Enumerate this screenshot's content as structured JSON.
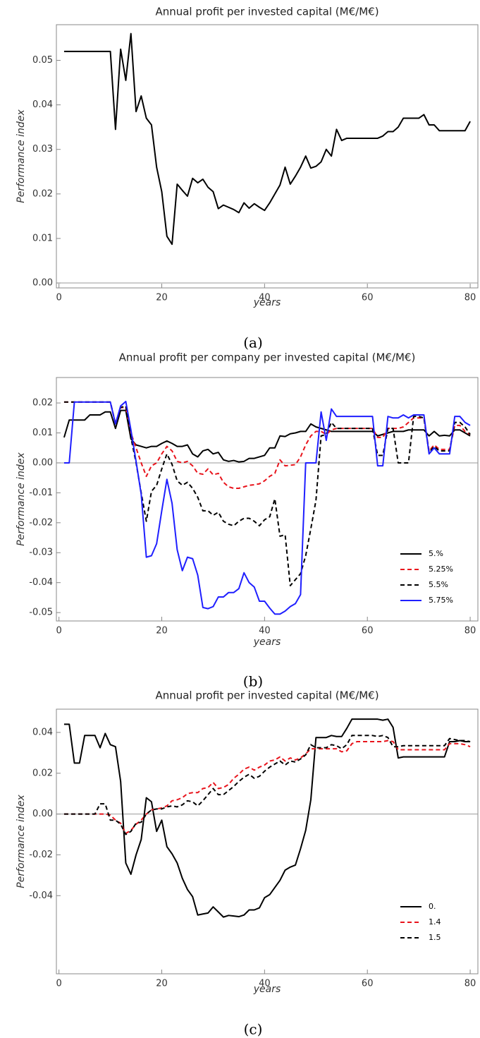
{
  "chart_data": [
    {
      "type": "line",
      "title": "Annual profit per invested capital (M€/M€)",
      "ylabel": "Performance index",
      "xlabel": "years",
      "panel_label": "(a)",
      "x": [
        1,
        2,
        3,
        4,
        5,
        6,
        7,
        8,
        9,
        10,
        11,
        12,
        13,
        14,
        15,
        16,
        17,
        18,
        19,
        20,
        21,
        22,
        23,
        24,
        25,
        26,
        27,
        28,
        29,
        30,
        31,
        32,
        33,
        34,
        35,
        36,
        37,
        38,
        39,
        40,
        41,
        42,
        43,
        44,
        45,
        46,
        47,
        48,
        49,
        50,
        51,
        52,
        53,
        54,
        55,
        56,
        57,
        58,
        59,
        60,
        61,
        62,
        63,
        64,
        65,
        66,
        67,
        68,
        69,
        70,
        71,
        72,
        73,
        74,
        75,
        76,
        77,
        78,
        79,
        80
      ],
      "xlim": [
        -0.5,
        81.5
      ],
      "xticks": [
        0,
        20,
        40,
        60,
        80
      ],
      "ylim": [
        -0.0011,
        0.058
      ],
      "yticks": [
        {
          "value": 0,
          "label": "0.00"
        },
        0.01,
        0.02,
        0.03,
        0.04,
        0.05
      ],
      "series": [
        {
          "name": null,
          "color": "#000000",
          "style": "solid",
          "values": [
            0.052,
            0.052,
            0.052,
            0.052,
            0.052,
            0.052,
            0.052,
            0.052,
            0.052,
            0.052,
            0.0345,
            0.0525,
            0.0455,
            0.056,
            0.0385,
            0.042,
            0.037,
            0.0355,
            0.026,
            0.0205,
            0.0105,
            0.0087,
            0.0222,
            0.0208,
            0.0195,
            0.0235,
            0.0225,
            0.0233,
            0.0215,
            0.0205,
            0.0167,
            0.0175,
            0.017,
            0.0165,
            0.0158,
            0.018,
            0.0168,
            0.0178,
            0.017,
            0.0163,
            0.018,
            0.02,
            0.022,
            0.026,
            0.0222,
            0.024,
            0.026,
            0.0285,
            0.0258,
            0.0262,
            0.0272,
            0.03,
            0.0285,
            0.0345,
            0.032,
            0.0325,
            0.0325,
            0.0325,
            0.0325,
            0.0325,
            0.0325,
            0.0325,
            0.033,
            0.034,
            0.034,
            0.035,
            0.037,
            0.037,
            0.037,
            0.037,
            0.0378,
            0.0355,
            0.0355,
            0.0342,
            0.0342,
            0.0342,
            0.0342,
            0.0342,
            0.0342,
            0.0363
          ]
        }
      ]
    },
    {
      "type": "line",
      "title": "Annual profit per company per invested capital (M€/M€)",
      "ylabel": "Performance index",
      "xlabel": "years",
      "panel_label": "(b)",
      "legend_position": "lower right",
      "x": [
        1,
        2,
        3,
        4,
        5,
        6,
        7,
        8,
        9,
        10,
        11,
        12,
        13,
        14,
        15,
        16,
        17,
        18,
        19,
        20,
        21,
        22,
        23,
        24,
        25,
        26,
        27,
        28,
        29,
        30,
        31,
        32,
        33,
        34,
        35,
        36,
        37,
        38,
        39,
        40,
        41,
        42,
        43,
        44,
        45,
        46,
        47,
        48,
        49,
        50,
        51,
        52,
        53,
        54,
        55,
        56,
        57,
        58,
        59,
        60,
        61,
        62,
        63,
        64,
        65,
        66,
        67,
        68,
        69,
        70,
        71,
        72,
        73,
        74,
        75,
        76,
        77,
        78,
        79,
        80
      ],
      "xlim": [
        -0.5,
        81.5
      ],
      "xticks": [
        0,
        20,
        40,
        60,
        80
      ],
      "ylim": [
        -0.0528,
        0.0285
      ],
      "yticks": [
        -0.05,
        -0.04,
        -0.03,
        -0.02,
        -0.01,
        {
          "value": 0,
          "label": "0.00"
        },
        0.01,
        0.02
      ],
      "series": [
        {
          "name": "5.%",
          "color": "#000000",
          "style": "solid",
          "values": [
            0.0085,
            0.0143,
            0.0143,
            0.0143,
            0.0143,
            0.016,
            0.016,
            0.016,
            0.017,
            0.017,
            0.0115,
            0.0175,
            0.0175,
            0.008,
            0.006,
            0.0055,
            0.005,
            0.0055,
            0.0055,
            0.0065,
            0.0073,
            0.0065,
            0.0055,
            0.0055,
            0.006,
            0.003,
            0.002,
            0.004,
            0.0045,
            0.003,
            0.0035,
            0.001,
            0.0005,
            0.0008,
            0.0003,
            0.0005,
            0.0015,
            0.0015,
            0.002,
            0.0025,
            0.005,
            0.005,
            0.009,
            0.0088,
            0.0097,
            0.01,
            0.0105,
            0.0105,
            0.013,
            0.012,
            0.0115,
            0.011,
            0.0105,
            0.0105,
            0.0105,
            0.0105,
            0.0105,
            0.0105,
            0.0105,
            0.0105,
            0.0105,
            0.009,
            0.0095,
            0.01,
            0.0105,
            0.0105,
            0.0105,
            0.011,
            0.011,
            0.011,
            0.011,
            0.009,
            0.0105,
            0.009,
            0.0092,
            0.009,
            0.011,
            0.011,
            0.01,
            0.009
          ]
        },
        {
          "name": "5.25%",
          "color": "#e8141c",
          "style": "dashed",
          "values": [
            0.0203,
            0.0203,
            0.0203,
            0.0203,
            0.0203,
            0.0203,
            0.0203,
            0.0203,
            0.0203,
            0.0203,
            0.013,
            0.0185,
            0.0185,
            0.01,
            0.005,
            0,
            -0.0045,
            -0.001,
            0,
            0.003,
            0.0055,
            0.004,
            0.0005,
            0,
            0.0005,
            -0.001,
            -0.0035,
            -0.0038,
            -0.002,
            -0.004,
            -0.0035,
            -0.0065,
            -0.008,
            -0.0085,
            -0.0085,
            -0.008,
            -0.0075,
            -0.0073,
            -0.007,
            -0.006,
            -0.0045,
            -0.0035,
            0.001,
            -0.001,
            -0.0008,
            -0.0006,
            0.002,
            0.006,
            0.009,
            0.0105,
            0.0105,
            0.0095,
            0.011,
            0.0115,
            0.0115,
            0.0115,
            0.0115,
            0.0115,
            0.0115,
            0.0115,
            0.0115,
            0.0085,
            0.0085,
            0.0115,
            0.0115,
            0.0115,
            0.012,
            0.0135,
            0.015,
            0.015,
            0.015,
            0.004,
            0.006,
            0.0045,
            0.0045,
            0.0045,
            0.0125,
            0.0125,
            0.0105,
            0.0095
          ]
        },
        {
          "name": "5.5%",
          "color": "#000000",
          "style": "dashed",
          "values": [
            0.0203,
            0.0203,
            0.0203,
            0.0203,
            0.0203,
            0.0203,
            0.0203,
            0.0203,
            0.0203,
            0.0203,
            0.013,
            0.0185,
            0.019,
            0.0085,
            0,
            -0.01,
            -0.0195,
            -0.0095,
            -0.0075,
            -0.002,
            0.003,
            -0.0005,
            -0.006,
            -0.0075,
            -0.0065,
            -0.0085,
            -0.0115,
            -0.016,
            -0.016,
            -0.0175,
            -0.0165,
            -0.0195,
            -0.0205,
            -0.021,
            -0.0195,
            -0.0185,
            -0.0185,
            -0.0195,
            -0.021,
            -0.019,
            -0.018,
            -0.012,
            -0.0245,
            -0.024,
            -0.041,
            -0.039,
            -0.037,
            -0.031,
            -0.022,
            -0.0125,
            0.009,
            0.0095,
            0.0135,
            0.0115,
            0.0115,
            0.0115,
            0.0115,
            0.0115,
            0.0115,
            0.0115,
            0.0115,
            0.0025,
            0.0025,
            0.0115,
            0.0115,
            0,
            0,
            0,
            0.0155,
            0.0155,
            0.015,
            0.0035,
            0.0055,
            0.004,
            0.004,
            0.004,
            0.0135,
            0.0135,
            0.012,
            0.0095
          ]
        },
        {
          "name": "5.75%",
          "color": "#1f1fff",
          "style": "solid",
          "values": [
            0,
            0,
            0.0203,
            0.0203,
            0.0203,
            0.0203,
            0.0203,
            0.0203,
            0.0203,
            0.0203,
            0.013,
            0.019,
            0.0205,
            0.011,
            0.0005,
            -0.0105,
            -0.0315,
            -0.031,
            -0.027,
            -0.016,
            -0.0055,
            -0.0135,
            -0.029,
            -0.036,
            -0.0315,
            -0.032,
            -0.0375,
            -0.0483,
            -0.0487,
            -0.048,
            -0.0448,
            -0.0448,
            -0.0433,
            -0.0433,
            -0.042,
            -0.0367,
            -0.04,
            -0.0415,
            -0.0462,
            -0.0462,
            -0.0485,
            -0.0505,
            -0.0505,
            -0.0495,
            -0.048,
            -0.047,
            -0.044,
            0,
            0,
            0,
            0.017,
            0.0075,
            0.018,
            0.0155,
            0.0155,
            0.0155,
            0.0155,
            0.0155,
            0.0155,
            0.0155,
            0.0155,
            -0.001,
            -0.001,
            0.0155,
            0.015,
            0.015,
            0.016,
            0.015,
            0.016,
            0.016,
            0.016,
            0.003,
            0.005,
            0.003,
            0.003,
            0.003,
            0.0155,
            0.0155,
            0.0135,
            0.0125
          ]
        }
      ]
    },
    {
      "type": "line",
      "title": "Annual profit per invested capital (M€/M€)",
      "ylabel": "Performance index",
      "xlabel": "years",
      "panel_label": "(c)",
      "legend_position": "lower right",
      "x": [
        1,
        2,
        3,
        4,
        5,
        6,
        7,
        8,
        9,
        10,
        11,
        12,
        13,
        14,
        15,
        16,
        17,
        18,
        19,
        20,
        21,
        22,
        23,
        24,
        25,
        26,
        27,
        28,
        29,
        30,
        31,
        32,
        33,
        34,
        35,
        36,
        37,
        38,
        39,
        40,
        41,
        42,
        43,
        44,
        45,
        46,
        47,
        48,
        49,
        50,
        51,
        52,
        53,
        54,
        55,
        56,
        57,
        58,
        59,
        60,
        61,
        62,
        63,
        64,
        65,
        66,
        67,
        68,
        69,
        70,
        71,
        72,
        73,
        74,
        75,
        76,
        77,
        78,
        79,
        80
      ],
      "xlim": [
        -0.5,
        81.5
      ],
      "xticks": [
        0,
        20,
        40,
        60,
        80
      ],
      "ylim": [
        -0.0783,
        0.0514
      ],
      "yticks": [
        -0.04,
        -0.02,
        {
          "value": 0,
          "label": "0.00"
        },
        0.02,
        0.04
      ],
      "series": [
        {
          "name": "0.",
          "color": "#000000",
          "style": "solid",
          "values": [
            0.044,
            0.044,
            0.025,
            0.025,
            0.0385,
            0.0385,
            0.0385,
            0.0325,
            0.0395,
            0.034,
            0.033,
            0.016,
            -0.024,
            -0.0295,
            -0.02,
            -0.0125,
            0.008,
            0.006,
            -0.0085,
            -0.003,
            -0.016,
            -0.0195,
            -0.024,
            -0.0315,
            -0.037,
            -0.0405,
            -0.0495,
            -0.049,
            -0.0485,
            -0.0455,
            -0.048,
            -0.0505,
            -0.0497,
            -0.05,
            -0.0503,
            -0.0495,
            -0.047,
            -0.047,
            -0.046,
            -0.041,
            -0.0395,
            -0.036,
            -0.0325,
            -0.0275,
            -0.026,
            -0.025,
            -0.017,
            -0.008,
            0.007,
            0.0375,
            0.0375,
            0.0375,
            0.0385,
            0.038,
            0.038,
            0.042,
            0.0465,
            0.0465,
            0.0465,
            0.0465,
            0.0465,
            0.0465,
            0.046,
            0.0465,
            0.0425,
            0.0275,
            0.028,
            0.028,
            0.028,
            0.028,
            0.028,
            0.028,
            0.028,
            0.028,
            0.028,
            0.0355,
            0.0355,
            0.036,
            0.0355,
            0.0355
          ]
        },
        {
          "name": "1.4",
          "color": "#e8141c",
          "style": "dashed",
          "values": [
            0,
            0,
            0,
            0,
            0,
            0,
            0,
            0,
            0,
            -0.0005,
            -0.003,
            -0.0045,
            -0.0095,
            -0.008,
            -0.005,
            -0.003,
            0,
            0.002,
            0.0025,
            0.003,
            0.004,
            0.0065,
            0.007,
            0.008,
            0.01,
            0.0105,
            0.0105,
            0.0125,
            0.013,
            0.0155,
            0.0125,
            0.013,
            0.0145,
            0.0175,
            0.0195,
            0.022,
            0.023,
            0.0215,
            0.023,
            0.024,
            0.026,
            0.0265,
            0.028,
            0.026,
            0.0275,
            0.0265,
            0.0275,
            0.0295,
            0.032,
            0.032,
            0.032,
            0.032,
            0.032,
            0.032,
            0.0305,
            0.031,
            0.0345,
            0.0355,
            0.0355,
            0.0355,
            0.0355,
            0.0355,
            0.0355,
            0.036,
            0.0355,
            0.0315,
            0.0315,
            0.0315,
            0.0315,
            0.0315,
            0.0315,
            0.0315,
            0.0315,
            0.0315,
            0.0315,
            0.0345,
            0.0345,
            0.0345,
            0.034,
            0.033
          ]
        },
        {
          "name": "1.5",
          "color": "#000000",
          "style": "dashed",
          "values": [
            0,
            0,
            0,
            0,
            0,
            0,
            0,
            0.005,
            0.005,
            -0.003,
            -0.003,
            -0.005,
            -0.01,
            -0.0085,
            -0.0045,
            -0.004,
            0,
            0.002,
            0.0025,
            0.0025,
            0.0035,
            0.004,
            0.0035,
            0.0045,
            0.0065,
            0.006,
            0.004,
            0.0065,
            0.0095,
            0.0125,
            0.0095,
            0.0095,
            0.0115,
            0.0135,
            0.016,
            0.018,
            0.0195,
            0.0175,
            0.0185,
            0.021,
            0.023,
            0.0245,
            0.026,
            0.024,
            0.026,
            0.0255,
            0.027,
            0.029,
            0.034,
            0.0325,
            0.0325,
            0.0325,
            0.034,
            0.0335,
            0.032,
            0.034,
            0.0385,
            0.0385,
            0.0385,
            0.0385,
            0.0385,
            0.038,
            0.0385,
            0.0375,
            0.033,
            0.033,
            0.0335,
            0.0335,
            0.0335,
            0.0335,
            0.0335,
            0.0335,
            0.0335,
            0.0335,
            0.0335,
            0.037,
            0.0365,
            0.036,
            0.036,
            0.0355
          ]
        }
      ]
    }
  ]
}
